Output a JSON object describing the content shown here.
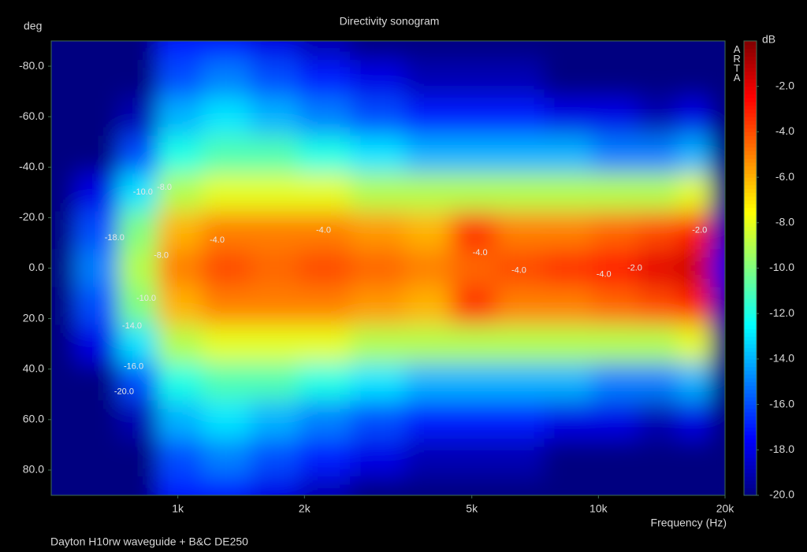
{
  "chart_data": {
    "type": "heatmap",
    "title": "Directivity sonogram",
    "ylabel": "deg",
    "xlabel": "Frequency (Hz)",
    "footnote": "Dayton H10rw waveguide + B&C DE250",
    "brand": "ARTA",
    "colorbar_label": "dB",
    "x": [
      500,
      650,
      800,
      1000,
      1300,
      1700,
      2200,
      3000,
      4000,
      5000,
      6500,
      8500,
      11000,
      14000,
      17000,
      20000
    ],
    "y": [
      -90,
      -75,
      -60,
      -45,
      -30,
      -15,
      0,
      15,
      30,
      45,
      60,
      75,
      90
    ],
    "values": [
      [
        -20,
        -20,
        -20,
        -17,
        -17,
        -18,
        -19,
        -20,
        -20,
        -20,
        -20,
        -20,
        -20,
        -20,
        -20,
        -20
      ],
      [
        -20,
        -20,
        -20,
        -16,
        -15,
        -16,
        -17,
        -18,
        -19,
        -19,
        -19,
        -20,
        -20,
        -20,
        -20,
        -20
      ],
      [
        -20,
        -20,
        -19,
        -14,
        -13,
        -14,
        -15,
        -16,
        -17,
        -17,
        -17,
        -18,
        -18,
        -19,
        -18,
        -20
      ],
      [
        -20,
        -20,
        -16,
        -12,
        -11,
        -11,
        -12,
        -13,
        -14,
        -14,
        -14,
        -14,
        -15,
        -15,
        -14,
        -20
      ],
      [
        -20,
        -18,
        -13,
        -9,
        -8,
        -8,
        -8,
        -9,
        -9,
        -9,
        -9,
        -9,
        -9,
        -9,
        -8,
        -20
      ],
      [
        -20,
        -16,
        -10,
        -6,
        -5,
        -5,
        -5,
        -5.5,
        -6,
        -3.5,
        -5,
        -5,
        -4.5,
        -4,
        -3,
        -19
      ],
      [
        -20,
        -15,
        -9,
        -5,
        -4,
        -4.5,
        -4,
        -4.5,
        -5,
        -4.5,
        -4,
        -3.5,
        -3,
        -2,
        -1.5,
        -18
      ],
      [
        -20,
        -16,
        -10,
        -6,
        -5,
        -5,
        -5,
        -5.5,
        -6,
        -3.5,
        -5,
        -5,
        -4.5,
        -4,
        -3,
        -19
      ],
      [
        -20,
        -18,
        -13,
        -9,
        -8,
        -8,
        -8,
        -9,
        -9,
        -9,
        -9,
        -9,
        -9,
        -9,
        -8,
        -20
      ],
      [
        -20,
        -20,
        -16,
        -12,
        -11,
        -11,
        -12,
        -13,
        -14,
        -14,
        -14,
        -14,
        -15,
        -15,
        -14,
        -20
      ],
      [
        -20,
        -20,
        -19,
        -14,
        -13,
        -14,
        -15,
        -16,
        -17,
        -17,
        -17,
        -18,
        -18,
        -19,
        -18,
        -20
      ],
      [
        -20,
        -20,
        -20,
        -16,
        -15,
        -16,
        -17,
        -18,
        -19,
        -19,
        -19,
        -20,
        -20,
        -20,
        -20,
        -20
      ],
      [
        -20,
        -20,
        -20,
        -17,
        -17,
        -18,
        -19,
        -20,
        -20,
        -20,
        -20,
        -20,
        -20,
        -20,
        -20,
        -20
      ]
    ],
    "xscale": "log",
    "xlim": [
      500,
      20000
    ],
    "xticks": [
      {
        "value": 1000,
        "label": "1k"
      },
      {
        "value": 2000,
        "label": "2k"
      },
      {
        "value": 5000,
        "label": "5k"
      },
      {
        "value": 10000,
        "label": "10k"
      },
      {
        "value": 20000,
        "label": "20k"
      }
    ],
    "ylim": [
      -90,
      90
    ],
    "y_inverted": true,
    "yticks": [
      {
        "value": -80,
        "label": "-80.0"
      },
      {
        "value": -60,
        "label": "-60.0"
      },
      {
        "value": -40,
        "label": "-40.0"
      },
      {
        "value": -20,
        "label": "-20.0"
      },
      {
        "value": 0,
        "label": "0.0"
      },
      {
        "value": 20,
        "label": "20.0"
      },
      {
        "value": 40,
        "label": "40.0"
      },
      {
        "value": 60,
        "label": "60.0"
      },
      {
        "value": 80,
        "label": "80.0"
      }
    ],
    "colormap": "jet",
    "clim": [
      -20,
      0
    ],
    "cticks": [
      {
        "value": -2,
        "label": "-2.0"
      },
      {
        "value": -4,
        "label": "-4.0"
      },
      {
        "value": -6,
        "label": "-6.0"
      },
      {
        "value": -8,
        "label": "-8.0"
      },
      {
        "value": -10,
        "label": "-10.0"
      },
      {
        "value": -12,
        "label": "-12.0"
      },
      {
        "value": -14,
        "label": "-14.0"
      },
      {
        "value": -16,
        "label": "-16.0"
      },
      {
        "value": -18,
        "label": "-18.0"
      },
      {
        "value": -20,
        "label": "-20.0"
      }
    ],
    "contour_labels": [
      {
        "x": 707,
        "y": -12,
        "value": -18,
        "label": "-18.0"
      },
      {
        "x": 826,
        "y": -30,
        "value": -10,
        "label": "-10.0"
      },
      {
        "x": 929,
        "y": -32,
        "value": -8,
        "label": "-8.0"
      },
      {
        "x": 1240,
        "y": -11,
        "value": -4,
        "label": "-4.0"
      },
      {
        "x": 2220,
        "y": -15,
        "value": -4,
        "label": "-4.0"
      },
      {
        "x": 913,
        "y": -5,
        "value": -8,
        "label": "-8.0"
      },
      {
        "x": 5230,
        "y": -6,
        "value": -4,
        "label": "-4.0"
      },
      {
        "x": 6470,
        "y": 1,
        "value": -4,
        "label": "-4.0"
      },
      {
        "x": 10300,
        "y": 2.5,
        "value": -4,
        "label": "-4.0"
      },
      {
        "x": 12200,
        "y": 0,
        "value": -2,
        "label": "-2.0"
      },
      {
        "x": 17400,
        "y": -15,
        "value": -2,
        "label": "-2.0"
      },
      {
        "x": 841,
        "y": 12,
        "value": -10,
        "label": "-10.0"
      },
      {
        "x": 778,
        "y": 23,
        "value": -14,
        "label": "-14.0"
      },
      {
        "x": 785,
        "y": 39,
        "value": -16,
        "label": "-16.0"
      },
      {
        "x": 745,
        "y": 49,
        "value": -20,
        "label": "-20.0"
      }
    ]
  }
}
